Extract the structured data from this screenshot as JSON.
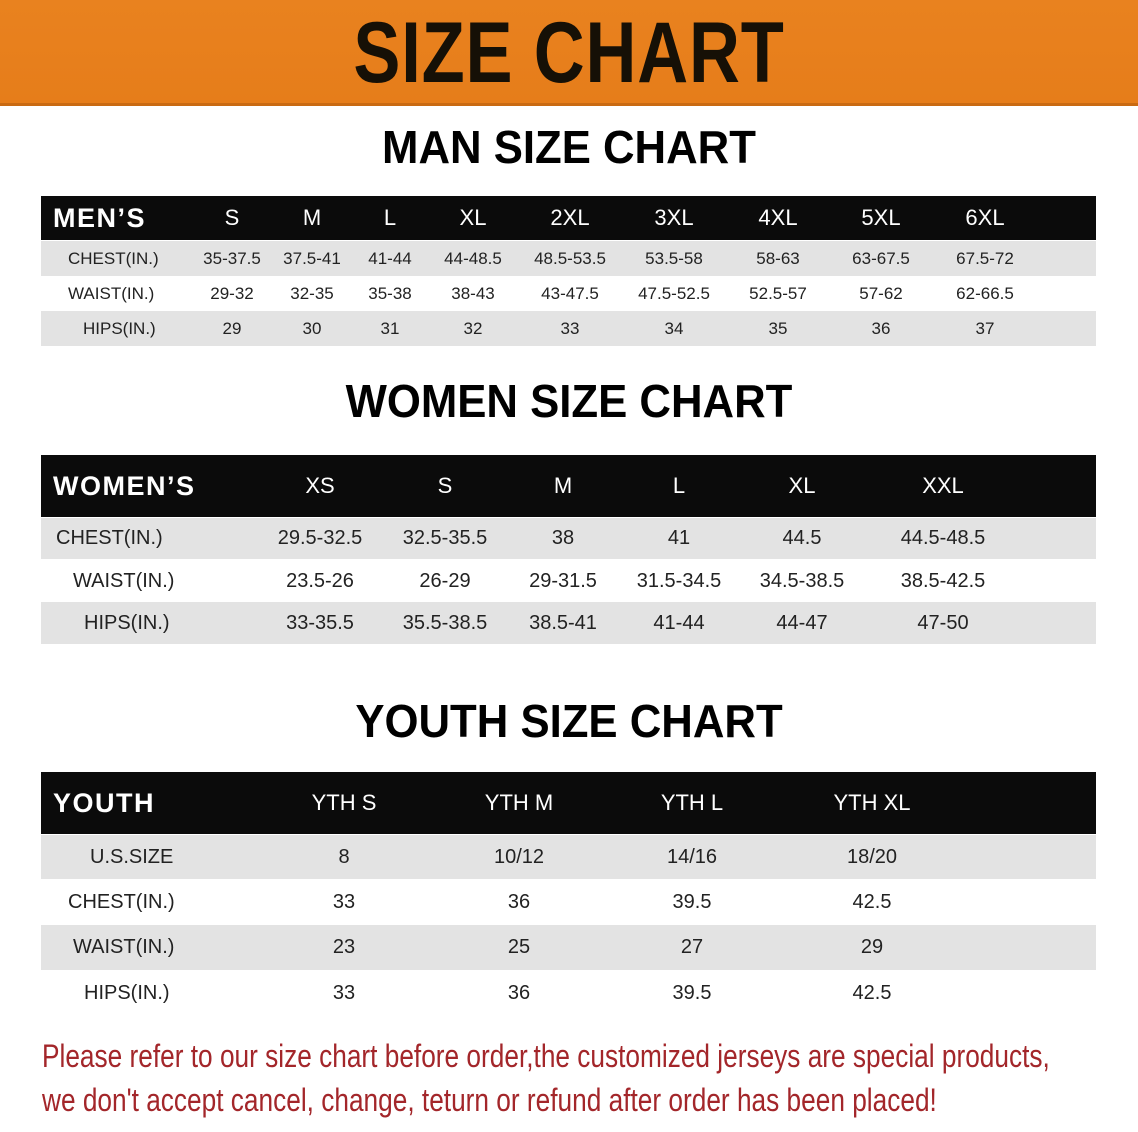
{
  "banner_title": "SIZE CHART",
  "colors": {
    "banner": "#e8801e",
    "header_row": "#0b0b0b",
    "stripe": "#e3e3e3",
    "notice": "#a3262a"
  },
  "men": {
    "title": "MAN SIZE CHART",
    "header": [
      "MEN’S",
      "S",
      "M",
      "L",
      "XL",
      "2XL",
      "3XL",
      "4XL",
      "5XL",
      "6XL"
    ],
    "rows": [
      [
        "CHEST(IN.)",
        "35-37.5",
        "37.5-41",
        "41-44",
        "44-48.5",
        "48.5-53.5",
        "53.5-58",
        "58-63",
        "63-67.5",
        "67.5-72"
      ],
      [
        "WAIST(IN.)",
        "29-32",
        "32-35",
        "35-38",
        "38-43",
        "43-47.5",
        "47.5-52.5",
        "52.5-57",
        "57-62",
        "62-66.5"
      ],
      [
        "HIPS(IN.)",
        "29",
        "30",
        "31",
        "32",
        "33",
        "34",
        "35",
        "36",
        "37"
      ]
    ]
  },
  "women": {
    "title": "WOMEN SIZE CHART",
    "header": [
      "WOMEN’S",
      "XS",
      "S",
      "M",
      "L",
      "XL",
      "XXL"
    ],
    "rows": [
      [
        "CHEST(IN.)",
        "29.5-32.5",
        "32.5-35.5",
        "38",
        "41",
        "44.5",
        "44.5-48.5"
      ],
      [
        "WAIST(IN.)",
        "23.5-26",
        "26-29",
        "29-31.5",
        "31.5-34.5",
        "34.5-38.5",
        "38.5-42.5"
      ],
      [
        "HIPS(IN.)",
        "33-35.5",
        "35.5-38.5",
        "38.5-41",
        "41-44",
        "44-47",
        "47-50"
      ]
    ]
  },
  "youth": {
    "title": "YOUTH SIZE CHART",
    "header": [
      "YOUTH",
      "YTH S",
      "YTH M",
      "YTH L",
      "YTH XL"
    ],
    "rows": [
      [
        "U.S.SIZE",
        "8",
        "10/12",
        "14/16",
        "18/20"
      ],
      [
        "CHEST(IN.)",
        "33",
        "36",
        "39.5",
        "42.5"
      ],
      [
        "WAIST(IN.)",
        "23",
        "25",
        "27",
        "29"
      ],
      [
        "HIPS(IN.)",
        "33",
        "36",
        "39.5",
        "42.5"
      ]
    ]
  },
  "notice": [
    "Please refer to our size chart before order,the customized jerseys are special products,",
    "we don't accept cancel, change, teturn or refund after order has been placed!"
  ]
}
